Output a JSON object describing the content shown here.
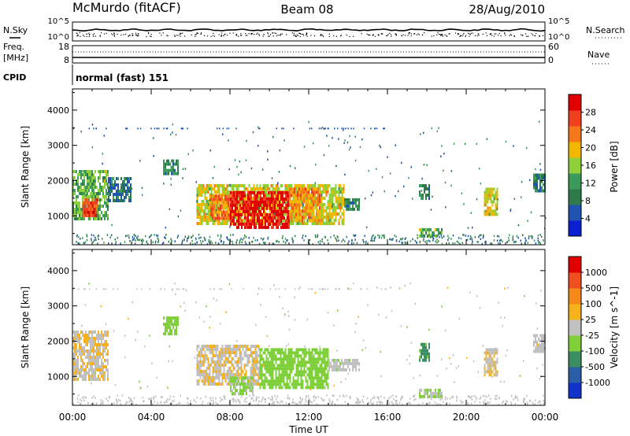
{
  "header": {
    "station": "McMurdo (fitACF)",
    "beam": "Beam 08",
    "date": "28/Aug/2010"
  },
  "noise_panel": {
    "left_label": "N.Sky",
    "left_ticks": [
      "10^5",
      "10^0"
    ],
    "right_label": "N.Search",
    "right_ticks": [
      "10^5",
      "10^0"
    ]
  },
  "freq_panel": {
    "left_label": "Freq.",
    "left_unit": "[MHz]",
    "left_ticks": [
      "18",
      "8"
    ],
    "right_label": "Nave",
    "right_ticks": [
      "60",
      "0"
    ]
  },
  "cpid": {
    "label": "CPID",
    "value": "normal (fast) 151"
  },
  "x_axis": {
    "label": "Time UT",
    "ticks": [
      "00:00",
      "04:00",
      "08:00",
      "12:00",
      "16:00",
      "20:00",
      "00:00"
    ]
  },
  "colors": {
    "power_scale": [
      "#0a1fd0",
      "#1f55b0",
      "#2f7a4a",
      "#3c9a5a",
      "#8fcf3a",
      "#f2b800",
      "#f5781a",
      "#f04020",
      "#e00000"
    ],
    "velocity_scale": [
      "#1133cc",
      "#2a5fa8",
      "#3a8d60",
      "#7fcf3a",
      "#c0c0c0",
      "#f5b21a",
      "#f58a1a",
      "#f05020",
      "#e00000"
    ]
  },
  "chart_data": [
    {
      "type": "heatmap",
      "title": "",
      "xlabel": "Time UT",
      "ylabel": "Slant Range [km]",
      "x_range_hours": [
        0,
        24
      ],
      "ylim": [
        180,
        4600
      ],
      "yticks": [
        "1000",
        "2000",
        "3000",
        "4000"
      ],
      "colorbar": {
        "label": "Power [dB]",
        "ticks": [
          "28",
          "24",
          "20",
          "16",
          "12",
          "8",
          "4"
        ],
        "range": [
          0,
          32
        ]
      },
      "regions": [
        {
          "t0": 0.0,
          "t1": 1.8,
          "r0": 900,
          "r1": 2300,
          "value": 14
        },
        {
          "t0": 0.5,
          "t1": 1.3,
          "r0": 1050,
          "r1": 1500,
          "value": 26
        },
        {
          "t0": 1.8,
          "t1": 3.0,
          "r0": 1400,
          "r1": 2100,
          "value": 8
        },
        {
          "t0": 4.6,
          "t1": 5.4,
          "r0": 2200,
          "r1": 2600,
          "value": 10
        },
        {
          "t0": 6.3,
          "t1": 13.8,
          "r0": 750,
          "r1": 1900,
          "value": 18
        },
        {
          "t0": 7.0,
          "t1": 8.0,
          "r0": 900,
          "r1": 1600,
          "value": 24
        },
        {
          "t0": 8.0,
          "t1": 11.0,
          "r0": 650,
          "r1": 1700,
          "value": 30
        },
        {
          "t0": 11.0,
          "t1": 12.6,
          "r0": 900,
          "r1": 1800,
          "value": 22
        },
        {
          "t0": 13.8,
          "t1": 14.6,
          "r0": 1150,
          "r1": 1500,
          "value": 10
        },
        {
          "t0": 17.6,
          "t1": 18.1,
          "r0": 1500,
          "r1": 1900,
          "value": 10
        },
        {
          "t0": 17.6,
          "t1": 18.8,
          "r0": 400,
          "r1": 650,
          "value": 14
        },
        {
          "t0": 20.9,
          "t1": 21.6,
          "r0": 1000,
          "r1": 1800,
          "value": 18
        },
        {
          "t0": 23.4,
          "t1": 24.0,
          "r0": 1700,
          "r1": 2200,
          "value": 8
        }
      ]
    },
    {
      "type": "heatmap",
      "title": "",
      "xlabel": "Time UT",
      "ylabel": "Slant Range [km]",
      "x_range_hours": [
        0,
        24
      ],
      "ylim": [
        180,
        4600
      ],
      "yticks": [
        "1000",
        "2000",
        "3000",
        "4000"
      ],
      "colorbar": {
        "label": "Velocity [m s^-1]",
        "ticks": [
          "1000",
          "500",
          "100",
          "25",
          "-25",
          "-100",
          "-500",
          "-1000"
        ],
        "range": [
          -1000,
          1000
        ]
      },
      "regions": [
        {
          "t0": 0.0,
          "t1": 1.8,
          "r0": 900,
          "r1": 2300,
          "value": 80
        },
        {
          "t0": 4.6,
          "t1": 5.4,
          "r0": 2200,
          "r1": 2700,
          "value": -200
        },
        {
          "t0": 6.3,
          "t1": 9.5,
          "r0": 750,
          "r1": 1900,
          "value": 90
        },
        {
          "t0": 8.0,
          "t1": 9.2,
          "r0": 500,
          "r1": 1000,
          "value": -150
        },
        {
          "t0": 9.5,
          "t1": 13.0,
          "r0": 650,
          "r1": 1800,
          "value": -250
        },
        {
          "t0": 13.0,
          "t1": 14.6,
          "r0": 1150,
          "r1": 1500,
          "value": -50
        },
        {
          "t0": 17.6,
          "t1": 18.1,
          "r0": 1450,
          "r1": 1950,
          "value": -400
        },
        {
          "t0": 17.6,
          "t1": 18.8,
          "r0": 400,
          "r1": 650,
          "value": -120
        },
        {
          "t0": 20.9,
          "t1": 21.6,
          "r0": 1000,
          "r1": 1800,
          "value": 90
        },
        {
          "t0": 23.4,
          "t1": 24.0,
          "r0": 1700,
          "r1": 2200,
          "value": 40
        }
      ]
    }
  ]
}
